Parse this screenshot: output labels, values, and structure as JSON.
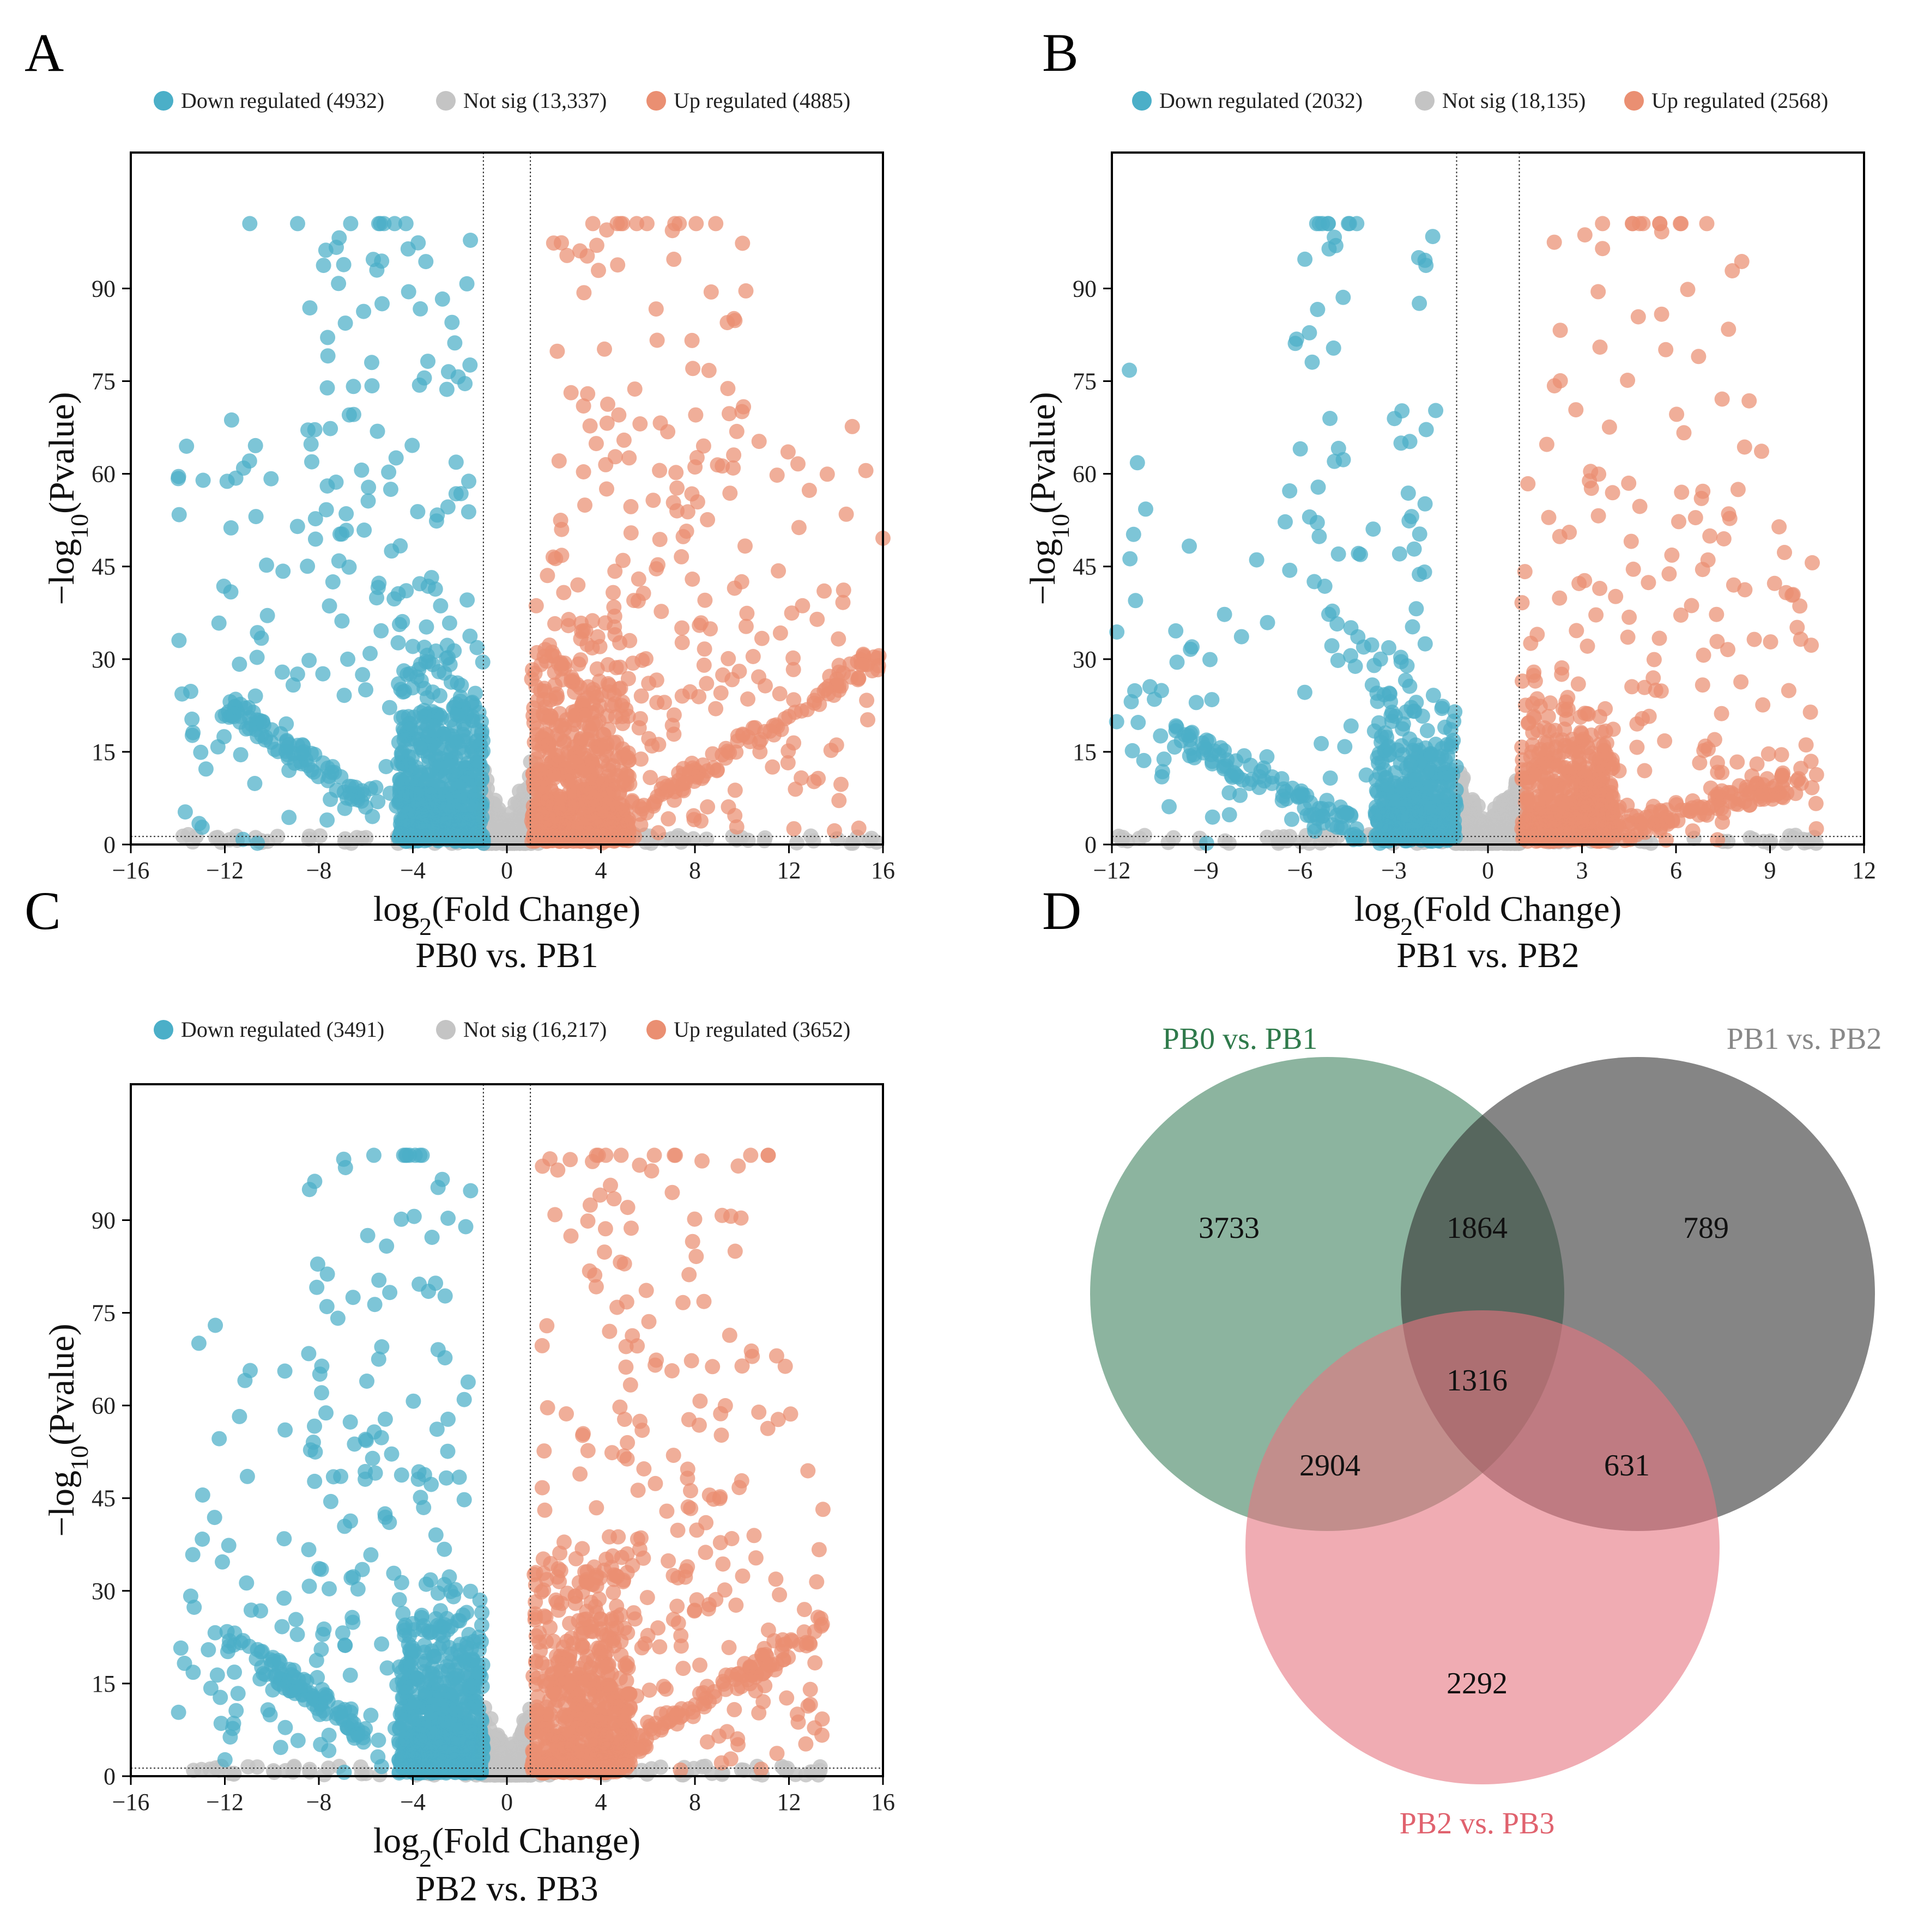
{
  "colors": {
    "down": "#4bafc8",
    "notsig": "#c4c4c4",
    "up": "#ea8f72",
    "venn_a": "#5f977a",
    "venn_b": "#333333",
    "venn_c": "#e67480",
    "venn_a_text": "#2f7a4b",
    "venn_b_text": "#888888",
    "venn_c_text": "#e0626e"
  },
  "chart_data": [
    {
      "type": "scatter",
      "panel": "A",
      "subtitle": "PB0 vs. PB1",
      "xlabel": "log2(Fold Change)",
      "ylabel": "-log10(Pvalue)",
      "xlim": [
        -16,
        16
      ],
      "ylim": [
        0,
        112
      ],
      "xticks": [
        -16,
        -12,
        -8,
        -4,
        0,
        4,
        8,
        12,
        16
      ],
      "xtick_labels": [
        "−16",
        "−12",
        "−8",
        "−4",
        "0",
        "4",
        "8",
        "12",
        "16"
      ],
      "yticks": [
        0,
        15,
        30,
        45,
        60,
        75,
        90
      ],
      "ytick_labels": [
        "0",
        "15",
        "30",
        "45",
        "60",
        "75",
        "90"
      ],
      "fc_threshold": 1,
      "p_threshold_line": 1.3,
      "legend": [
        "Down regulated (4932)",
        "Not sig (13,337)",
        "Up regulated (4885)"
      ],
      "counts": {
        "down": 4932,
        "notsig": 13337,
        "up": 4885
      },
      "series_shape": {
        "down_min": -14,
        "up_max": 16
      },
      "seed": 11
    },
    {
      "type": "scatter",
      "panel": "B",
      "subtitle": "PB1 vs. PB2",
      "xlabel": "log2(Fold Change)",
      "ylabel": "-log10(Pvalue)",
      "xlim": [
        -12,
        12
      ],
      "ylim": [
        0,
        112
      ],
      "xticks": [
        -12,
        -9,
        -6,
        -3,
        0,
        3,
        6,
        9,
        12
      ],
      "xtick_labels": [
        "−12",
        "−9",
        "−6",
        "−3",
        "0",
        "3",
        "6",
        "9",
        "12"
      ],
      "yticks": [
        0,
        15,
        30,
        45,
        60,
        75,
        90
      ],
      "ytick_labels": [
        "0",
        "15",
        "30",
        "45",
        "60",
        "75",
        "90"
      ],
      "fc_threshold": 1,
      "p_threshold_line": 1.3,
      "legend": [
        "Down regulated (2032)",
        "Not sig (18,135)",
        "Up regulated (2568)"
      ],
      "counts": {
        "down": 2032,
        "notsig": 18135,
        "up": 2568
      },
      "series_shape": {
        "down_min": -12,
        "up_max": 10.5
      },
      "seed": 29
    },
    {
      "type": "scatter",
      "panel": "C",
      "subtitle": "PB2 vs. PB3",
      "xlabel": "log2(Fold Change)",
      "ylabel": "-log10(Pvalue)",
      "xlim": [
        -16,
        16
      ],
      "ylim": [
        0,
        112
      ],
      "xticks": [
        -16,
        -12,
        -8,
        -4,
        0,
        4,
        8,
        12,
        16
      ],
      "xtick_labels": [
        "−16",
        "−12",
        "−8",
        "−4",
        "0",
        "4",
        "8",
        "12",
        "16"
      ],
      "yticks": [
        0,
        15,
        30,
        45,
        60,
        75,
        90
      ],
      "ytick_labels": [
        "0",
        "15",
        "30",
        "45",
        "60",
        "75",
        "90"
      ],
      "fc_threshold": 1,
      "p_threshold_line": 1.3,
      "legend": [
        "Down regulated (3491)",
        "Not sig (16,217)",
        "Up regulated (3652)"
      ],
      "counts": {
        "down": 3491,
        "notsig": 16217,
        "up": 3652
      },
      "series_shape": {
        "down_min": -14,
        "up_max": 13.5
      },
      "seed": 47
    },
    {
      "type": "venn",
      "panel": "D",
      "sets": [
        "PB0 vs. PB1",
        "PB1 vs. PB2",
        "PB2 vs. PB3"
      ],
      "regions": {
        "A_only": 3733,
        "B_only": 789,
        "C_only": 2292,
        "AB": 1864,
        "AC": 2904,
        "BC": 631,
        "ABC": 1316
      }
    }
  ]
}
